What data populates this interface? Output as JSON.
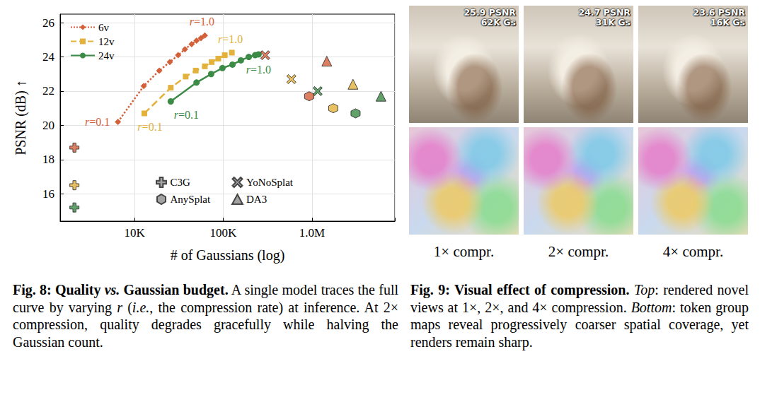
{
  "chart_data": {
    "type": "line",
    "xlabel": "# of Gaussians (log)",
    "ylabel": "PSNR (dB) ↑",
    "log": "x",
    "xlim": [
      1450,
      8600000
    ],
    "xticks": [
      {
        "value": 10000,
        "label": "10K"
      },
      {
        "value": 100000,
        "label": "100K"
      },
      {
        "value": 1000000,
        "label": "1.0M"
      }
    ],
    "ylim": [
      14.4,
      26.5
    ],
    "yticks": [
      16,
      18,
      20,
      22,
      24,
      26
    ],
    "grid": true,
    "legend": [
      "upper left",
      "lower center"
    ],
    "series": [
      {
        "name": "6v",
        "type": "line",
        "color": "#d4603a",
        "marker": "diamond",
        "line_style": "dotted",
        "x": [
          6500,
          12700,
          19000,
          25000,
          31000,
          37000,
          44000,
          50000,
          56000,
          62000
        ],
        "values": [
          20.2,
          22.3,
          23.2,
          23.7,
          24.1,
          24.45,
          24.75,
          24.95,
          25.1,
          25.25
        ],
        "start_label": "r=0.1",
        "end_label": "r=1.0"
      },
      {
        "name": "12v",
        "type": "line",
        "color": "#e3b23c",
        "marker": "square",
        "line_style": "dashed",
        "x": [
          12900,
          25600,
          37700,
          49000,
          62000,
          74000,
          88000,
          104000,
          125000
        ],
        "values": [
          20.7,
          22.2,
          22.85,
          23.2,
          23.45,
          23.7,
          23.9,
          24.1,
          24.25
        ],
        "start_label": "r=0.1",
        "end_label": "r=1.0"
      },
      {
        "name": "24v",
        "type": "line",
        "color": "#3b8a45",
        "marker": "circle",
        "line_style": "solid",
        "x": [
          25600,
          50000,
          73000,
          98000,
          127000,
          158000,
          194000,
          229000,
          250000
        ],
        "values": [
          21.4,
          22.5,
          23.0,
          23.35,
          23.55,
          23.8,
          24.0,
          24.1,
          24.15
        ],
        "start_label": "r=0.1",
        "end_label": "r=1.0"
      },
      {
        "name": "C3G",
        "type": "scatter",
        "marker": "plus",
        "color": "#8c8c8c",
        "x": [
          2100,
          2100,
          2100
        ],
        "values": [
          18.7,
          16.5,
          15.2
        ],
        "colors": [
          "#d4603a",
          "#e3b23c",
          "#3b8a45"
        ]
      },
      {
        "name": "YoNoSplat",
        "type": "scatter",
        "marker": "x",
        "color": "#8c8c8c",
        "x": [
          297000,
          586000,
          1160000
        ],
        "values": [
          24.1,
          22.7,
          22.0
        ],
        "colors": [
          "#d4603a",
          "#e3b23c",
          "#3b8a45"
        ]
      },
      {
        "name": "AnySplat",
        "type": "scatter",
        "marker": "hexagon",
        "color": "#8c8c8c",
        "x": [
          930000,
          1740000,
          3100000
        ],
        "values": [
          21.7,
          21.0,
          20.7
        ],
        "colors": [
          "#d4603a",
          "#e3b23c",
          "#3b8a45"
        ]
      },
      {
        "name": "DA3",
        "type": "scatter",
        "marker": "triangle",
        "color": "#8c8c8c",
        "x": [
          1470000,
          2900000,
          6000000
        ],
        "values": [
          23.75,
          22.4,
          21.7
        ],
        "colors": [
          "#d4603a",
          "#e3b23c",
          "#3b8a45"
        ]
      }
    ]
  },
  "figure8": {
    "caption": [
      {
        "text": "Fig. 8: Quality ",
        "bold": true,
        "italic": false
      },
      {
        "text": "vs.",
        "bold": true,
        "italic": true
      },
      {
        "text": " Gaussian budget.",
        "bold": true,
        "italic": false
      },
      {
        "text": " A single model traces the full curve by varying ",
        "bold": false,
        "italic": false
      },
      {
        "text": "r",
        "bold": false,
        "italic": true
      },
      {
        "text": " (",
        "bold": false,
        "italic": false
      },
      {
        "text": "i.e.",
        "bold": false,
        "italic": true
      },
      {
        "text": ", the compression rate) at inference. At 2× compression, quality degrades gracefully while halving the Gaussian count.",
        "bold": false,
        "italic": false
      }
    ]
  },
  "figure9": {
    "panels": [
      {
        "psnr": "25.9 PSNR",
        "gaussians": "62K Gs",
        "label": "1× compr."
      },
      {
        "psnr": "24.7 PSNR",
        "gaussians": "31K Gs",
        "label": "2× compr."
      },
      {
        "psnr": "23.6 PSNR",
        "gaussians": "16K Gs",
        "label": "4× compr."
      }
    ],
    "caption": [
      {
        "text": "Fig. 9: Visual effect of compression.",
        "bold": true,
        "italic": false
      },
      {
        "text": " ",
        "bold": false,
        "italic": false
      },
      {
        "text": "Top",
        "bold": false,
        "italic": true
      },
      {
        "text": ": rendered novel views at 1×, 2×, and 4× compression. ",
        "bold": false,
        "italic": false
      },
      {
        "text": "Bottom",
        "bold": false,
        "italic": true
      },
      {
        "text": ": token group maps reveal progressively coarser spatial coverage, yet renders remain sharp.",
        "bold": false,
        "italic": false
      }
    ]
  }
}
